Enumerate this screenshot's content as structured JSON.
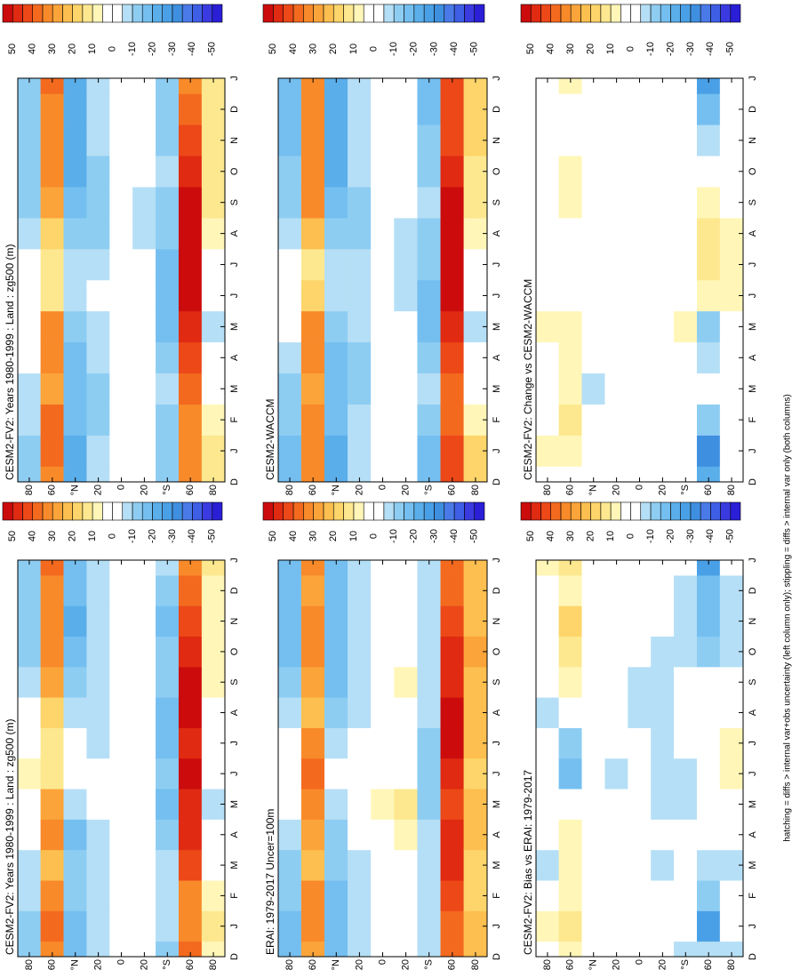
{
  "note": "hatching = diffs > internal var+obs uncertainty (left column only); stippling = diffs > internal var only (both columns)",
  "colorbar": {
    "levels": [
      -55,
      -50,
      -45,
      -40,
      -35,
      -30,
      -25,
      -20,
      -15,
      -10,
      -5,
      0,
      5,
      10,
      15,
      20,
      25,
      30,
      35,
      40,
      45,
      50,
      55
    ],
    "colors": [
      "#2a1fd6",
      "#3a3ae0",
      "#3f5ee6",
      "#4a7ae8",
      "#3f8fe0",
      "#4aa0e6",
      "#5aaeea",
      "#74bff0",
      "#8ecdf2",
      "#b5dff6",
      "#ffffff",
      "#ffffff",
      "#fff6b8",
      "#fde890",
      "#fdd56a",
      "#fdbf4f",
      "#fba43a",
      "#f88a2a",
      "#f36a1f",
      "#ec4818",
      "#e02a12",
      "#cc0c0c"
    ],
    "ticks": [
      50,
      40,
      30,
      20,
      10,
      0,
      -10,
      -20,
      -30,
      -40,
      -50
    ]
  },
  "chart_data": [
    {
      "type": "contour",
      "title": "CESM2-FV2: Years 1980-1999 : Land : zg500 (m)",
      "categories": [
        "D",
        "J",
        "F",
        "M",
        "A",
        "M",
        "J",
        "J",
        "A",
        "S",
        "O",
        "N",
        "D",
        "J"
      ],
      "ylim": [
        -90,
        90
      ],
      "yticks": [
        80,
        60,
        {
          "value": 40,
          "label": "°N"
        },
        20,
        0,
        {
          "value": -20,
          "label": "20"
        },
        {
          "value": -40,
          "label": "°S"
        },
        {
          "value": -60,
          "label": "60"
        },
        {
          "value": -80,
          "label": "80"
        }
      ],
      "lats": [
        80,
        60,
        40,
        20,
        0,
        -20,
        -40,
        -60,
        -80
      ],
      "z": [
        [
          -15,
          -15,
          -10,
          -10,
          -5,
          0,
          5,
          0,
          -5,
          -10,
          -15,
          -15,
          -15,
          -15
        ],
        [
          30,
          35,
          30,
          20,
          30,
          25,
          10,
          10,
          15,
          25,
          30,
          30,
          30,
          35
        ],
        [
          -20,
          -20,
          -15,
          -15,
          -20,
          -10,
          -5,
          -5,
          -10,
          -15,
          -20,
          -25,
          -20,
          -20
        ],
        [
          -10,
          -10,
          -10,
          -10,
          -10,
          -5,
          -5,
          -10,
          -10,
          -10,
          -10,
          -10,
          -10,
          -10
        ],
        [
          0,
          0,
          0,
          0,
          0,
          0,
          0,
          0,
          0,
          0,
          0,
          0,
          0,
          0
        ],
        [
          -5,
          -5,
          -5,
          0,
          0,
          0,
          0,
          0,
          -5,
          -5,
          -5,
          -5,
          -5,
          -5
        ],
        [
          -15,
          -10,
          -10,
          -10,
          -15,
          -20,
          -15,
          -20,
          -20,
          -15,
          -15,
          -20,
          -15,
          -10
        ],
        [
          35,
          30,
          30,
          40,
          45,
          45,
          50,
          45,
          50,
          50,
          45,
          40,
          35,
          30
        ],
        [
          5,
          10,
          5,
          0,
          -5,
          -10,
          -5,
          -5,
          0,
          5,
          5,
          5,
          5,
          10
        ]
      ]
    },
    {
      "type": "contour",
      "title": "CESM2-FV2: Years 1980-1999 : Land : zg500 (m)",
      "categories": [
        "D",
        "J",
        "F",
        "M",
        "A",
        "M",
        "J",
        "J",
        "A",
        "S",
        "O",
        "N",
        "D",
        "J"
      ],
      "ylim": [
        -90,
        90
      ],
      "yticks": [
        80,
        60,
        {
          "value": 40,
          "label": "°N"
        },
        20,
        0,
        {
          "value": -20,
          "label": "20"
        },
        {
          "value": -40,
          "label": "°S"
        },
        {
          "value": -60,
          "label": "60"
        },
        {
          "value": -80,
          "label": "80"
        }
      ],
      "lats": [
        80,
        60,
        40,
        20,
        0,
        -20,
        -40,
        -60,
        -80
      ],
      "z": [
        [
          -15,
          -15,
          -10,
          -10,
          -5,
          -5,
          0,
          -5,
          -10,
          -15,
          -15,
          -15,
          -15,
          -15
        ],
        [
          30,
          35,
          35,
          25,
          30,
          30,
          10,
          10,
          15,
          25,
          30,
          30,
          30,
          35
        ],
        [
          -25,
          -25,
          -20,
          -20,
          -20,
          -15,
          -10,
          -10,
          -15,
          -20,
          -25,
          -25,
          -25,
          -25
        ],
        [
          -10,
          -10,
          -15,
          -15,
          -10,
          -10,
          -5,
          -10,
          -15,
          -15,
          -15,
          -10,
          -10,
          -10
        ],
        [
          0,
          0,
          0,
          0,
          0,
          0,
          0,
          0,
          0,
          0,
          0,
          0,
          0,
          0
        ],
        [
          -5,
          -5,
          -5,
          -5,
          0,
          0,
          -5,
          -5,
          -10,
          -10,
          -5,
          -5,
          -5,
          -5
        ],
        [
          -15,
          -15,
          -15,
          -10,
          -15,
          -20,
          -20,
          -20,
          -15,
          -15,
          -10,
          -15,
          -15,
          -15
        ],
        [
          30,
          30,
          30,
          35,
          40,
          45,
          50,
          50,
          50,
          50,
          45,
          40,
          35,
          30
        ],
        [
          10,
          10,
          5,
          0,
          -5,
          -10,
          -5,
          0,
          5,
          10,
          10,
          10,
          10,
          10
        ]
      ]
    },
    {
      "type": "contour",
      "title": "ERAI: 1979-2017 Uncer=100m",
      "categories": [
        "D",
        "J",
        "F",
        "M",
        "A",
        "M",
        "J",
        "J",
        "A",
        "S",
        "O",
        "N",
        "D",
        "J"
      ],
      "ylim": [
        -90,
        90
      ],
      "yticks": [
        80,
        60,
        {
          "value": 40,
          "label": "°N"
        },
        20,
        0,
        {
          "value": -20,
          "label": "20"
        },
        {
          "value": -40,
          "label": "°S"
        },
        {
          "value": -60,
          "label": "60"
        },
        {
          "value": -80,
          "label": "80"
        }
      ],
      "lats": [
        80,
        60,
        40,
        20,
        0,
        -20,
        -40,
        -60,
        -80
      ],
      "z": [
        [
          -20,
          -20,
          -15,
          -15,
          -10,
          -5,
          0,
          -5,
          -10,
          -15,
          -20,
          -20,
          -20,
          -20
        ],
        [
          25,
          30,
          30,
          20,
          25,
          30,
          35,
          30,
          20,
          25,
          30,
          30,
          25,
          30
        ],
        [
          -20,
          -20,
          -20,
          -15,
          -15,
          -10,
          -5,
          -10,
          -15,
          -20,
          -20,
          -20,
          -20,
          -20
        ],
        [
          -10,
          -10,
          -10,
          -10,
          -5,
          -5,
          0,
          -5,
          -10,
          -10,
          -10,
          -10,
          -10,
          -10
        ],
        [
          0,
          0,
          0,
          0,
          0,
          5,
          0,
          0,
          0,
          0,
          0,
          0,
          0,
          0
        ],
        [
          0,
          0,
          0,
          0,
          5,
          10,
          0,
          0,
          0,
          5,
          0,
          0,
          0,
          0
        ],
        [
          -10,
          -10,
          -10,
          -10,
          -10,
          -15,
          -15,
          -15,
          -10,
          -10,
          -10,
          -10,
          -10,
          -10
        ],
        [
          35,
          35,
          40,
          45,
          45,
          40,
          45,
          50,
          50,
          45,
          45,
          40,
          35,
          35
        ],
        [
          20,
          20,
          15,
          15,
          20,
          20,
          15,
          20,
          20,
          20,
          25,
          20,
          20,
          20
        ]
      ]
    },
    {
      "type": "contour",
      "title": "CESM2-WACCM",
      "categories": [
        "D",
        "J",
        "F",
        "M",
        "A",
        "M",
        "J",
        "J",
        "A",
        "S",
        "O",
        "N",
        "D",
        "J"
      ],
      "ylim": [
        -90,
        90
      ],
      "yticks": [
        80,
        60,
        {
          "value": 40,
          "label": "°N"
        },
        20,
        0,
        {
          "value": -20,
          "label": "20"
        },
        {
          "value": -40,
          "label": "°S"
        },
        {
          "value": -60,
          "label": "60"
        },
        {
          "value": -80,
          "label": "80"
        }
      ],
      "lats": [
        80,
        60,
        40,
        20,
        0,
        -20,
        -40,
        -60,
        -80
      ],
      "z": [
        [
          -20,
          -20,
          -15,
          -15,
          -10,
          -5,
          0,
          -5,
          -10,
          -15,
          -15,
          -20,
          -20,
          -20
        ],
        [
          30,
          30,
          30,
          25,
          30,
          30,
          15,
          10,
          20,
          30,
          30,
          30,
          30,
          30
        ],
        [
          -25,
          -25,
          -20,
          -20,
          -20,
          -15,
          -10,
          -10,
          -15,
          -20,
          -25,
          -25,
          -25,
          -25
        ],
        [
          -10,
          -10,
          -10,
          -15,
          -15,
          -10,
          -10,
          -10,
          -15,
          -15,
          -10,
          -10,
          -10,
          -10
        ],
        [
          0,
          0,
          0,
          0,
          0,
          0,
          -5,
          -5,
          0,
          0,
          0,
          0,
          0,
          0
        ],
        [
          -5,
          -5,
          -5,
          -5,
          0,
          -5,
          -10,
          -10,
          -10,
          -5,
          -5,
          -5,
          -5,
          -5
        ],
        [
          -20,
          -20,
          -15,
          -10,
          -15,
          -20,
          -20,
          -15,
          -15,
          -10,
          -15,
          -15,
          -20,
          -20
        ],
        [
          40,
          40,
          35,
          35,
          40,
          45,
          50,
          50,
          50,
          50,
          45,
          40,
          40,
          40
        ],
        [
          15,
          15,
          5,
          0,
          -5,
          -10,
          -5,
          0,
          5,
          10,
          10,
          15,
          15,
          15
        ]
      ]
    },
    {
      "type": "contour",
      "title": "CESM2-FV2: Bias vs ERAI: 1979-2017",
      "categories": [
        "D",
        "J",
        "F",
        "M",
        "A",
        "M",
        "J",
        "J",
        "A",
        "S",
        "O",
        "N",
        "D",
        "J"
      ],
      "ylim": [
        -90,
        90
      ],
      "yticks": [
        80,
        60,
        {
          "value": 40,
          "label": "°N"
        },
        20,
        0,
        {
          "value": -20,
          "label": "20"
        },
        {
          "value": -40,
          "label": "°S"
        },
        {
          "value": -60,
          "label": "60"
        },
        {
          "value": -80,
          "label": "80"
        }
      ],
      "lats": [
        80,
        60,
        40,
        20,
        0,
        -20,
        -40,
        -60,
        -80
      ],
      "z": [
        [
          0,
          5,
          -5,
          -10,
          -5,
          0,
          0,
          -5,
          -10,
          0,
          -5,
          0,
          0,
          5
        ],
        [
          5,
          10,
          5,
          5,
          5,
          0,
          -20,
          -15,
          0,
          5,
          10,
          15,
          5,
          10
        ],
        [
          -5,
          -5,
          0,
          -5,
          -5,
          -5,
          -5,
          0,
          0,
          0,
          -5,
          -5,
          -5,
          -5
        ],
        [
          0,
          0,
          -5,
          -5,
          -5,
          -5,
          -10,
          -5,
          -5,
          -5,
          0,
          0,
          0,
          0
        ],
        [
          -5,
          -5,
          -5,
          -5,
          -5,
          -5,
          -5,
          -5,
          -10,
          -10,
          -5,
          -5,
          -5,
          -5
        ],
        [
          -5,
          -5,
          -5,
          -10,
          -5,
          -10,
          -10,
          -10,
          -10,
          -10,
          -10,
          -5,
          -5,
          -5
        ],
        [
          -10,
          -5,
          -5,
          -5,
          -5,
          -10,
          -10,
          -5,
          -5,
          -5,
          -10,
          -10,
          -10,
          -5
        ],
        [
          -10,
          -30,
          -15,
          -10,
          0,
          -5,
          -5,
          0,
          -5,
          -5,
          -15,
          -20,
          -20,
          -30
        ],
        [
          -10,
          -5,
          -5,
          -10,
          -5,
          -5,
          5,
          5,
          -5,
          -5,
          -10,
          -10,
          -10,
          -5
        ]
      ]
    },
    {
      "type": "contour",
      "title": "CESM2-FV2: Change vs CESM2-WACCM",
      "categories": [
        "D",
        "J",
        "F",
        "M",
        "A",
        "M",
        "J",
        "J",
        "A",
        "S",
        "O",
        "N",
        "D",
        "J"
      ],
      "ylim": [
        -90,
        90
      ],
      "yticks": [
        80,
        60,
        {
          "value": 40,
          "label": "°N"
        },
        20,
        0,
        {
          "value": -20,
          "label": "20"
        },
        {
          "value": -40,
          "label": "°S"
        },
        {
          "value": -60,
          "label": "60"
        },
        {
          "value": -80,
          "label": "80"
        }
      ],
      "lats": [
        80,
        60,
        40,
        20,
        0,
        -20,
        -40,
        -60,
        -80
      ],
      "z": [
        [
          0,
          5,
          0,
          0,
          0,
          5,
          0,
          0,
          0,
          0,
          0,
          0,
          0,
          0
        ],
        [
          0,
          5,
          10,
          5,
          5,
          5,
          0,
          0,
          0,
          5,
          5,
          0,
          0,
          5
        ],
        [
          0,
          0,
          0,
          -10,
          0,
          0,
          0,
          0,
          0,
          0,
          0,
          0,
          0,
          0
        ],
        [
          0,
          0,
          0,
          0,
          0,
          0,
          0,
          0,
          0,
          0,
          0,
          0,
          0,
          0
        ],
        [
          0,
          0,
          0,
          0,
          0,
          0,
          0,
          0,
          0,
          0,
          0,
          0,
          0,
          0
        ],
        [
          0,
          0,
          0,
          0,
          0,
          0,
          0,
          0,
          0,
          0,
          0,
          0,
          0,
          0
        ],
        [
          0,
          0,
          0,
          0,
          0,
          5,
          0,
          -5,
          0,
          0,
          0,
          0,
          0,
          0
        ],
        [
          -25,
          -35,
          -15,
          -5,
          -10,
          -15,
          5,
          10,
          10,
          5,
          -5,
          -10,
          -20,
          -30
        ],
        [
          0,
          0,
          0,
          0,
          0,
          0,
          5,
          5,
          5,
          0,
          0,
          0,
          0,
          0
        ]
      ]
    }
  ]
}
